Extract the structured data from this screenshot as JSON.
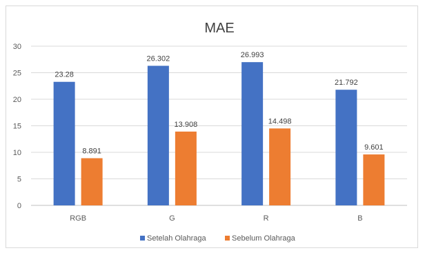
{
  "chart_data": {
    "type": "bar",
    "title": "MAE",
    "categories": [
      "RGB",
      "G",
      "R",
      "B"
    ],
    "series": [
      {
        "name": "Setelah Olahraga",
        "color": "#4472C4",
        "values": [
          23.28,
          26.302,
          26.993,
          21.792
        ]
      },
      {
        "name": "Sebelum Olahraga",
        "color": "#ED7D31",
        "values": [
          8.891,
          13.908,
          14.498,
          9.601
        ]
      }
    ],
    "ylim": [
      0,
      30
    ],
    "yticks": [
      0,
      5,
      10,
      15,
      20,
      25,
      30
    ],
    "grid": true,
    "legend": "bottom",
    "xlabel": "",
    "ylabel": ""
  }
}
